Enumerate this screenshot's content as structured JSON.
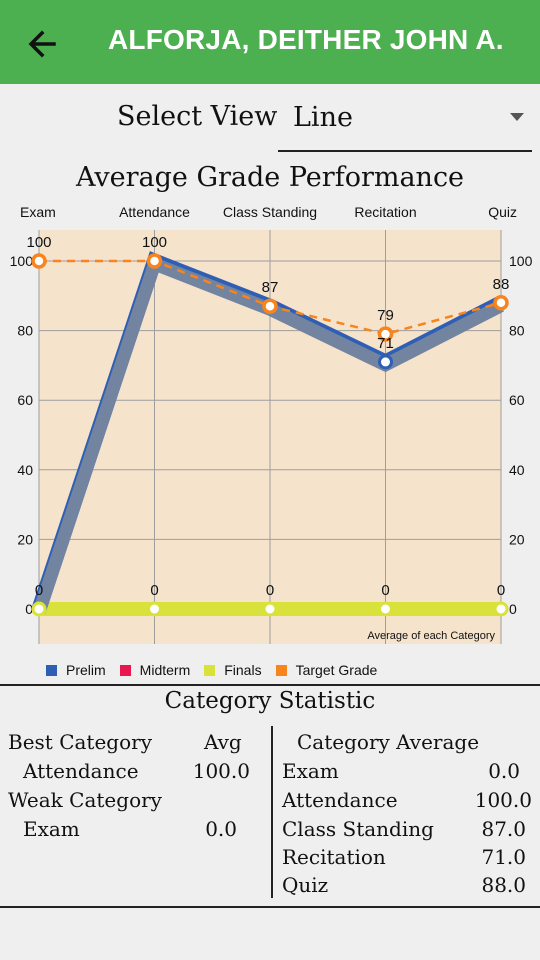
{
  "header": {
    "title": "ALFORJA, DEITHER JOHN A.",
    "back_icon": "arrow-back-icon"
  },
  "select_view": {
    "label": "Select View",
    "value": "Line"
  },
  "colors": {
    "appbar": "#4caf50",
    "prelim": "#2e5fb5",
    "midterm": "#e8174f",
    "finals": "#d9e23a",
    "target": "#f7841c",
    "plot_bg": "#f5e3cc"
  },
  "chart_data": {
    "type": "line",
    "title": "Average Grade Performance",
    "categories": [
      "Exam",
      "Attendance",
      "Class Standing",
      "Recitation",
      "Quiz"
    ],
    "ylim": [
      0,
      100
    ],
    "yticks": [
      0,
      20,
      40,
      60,
      80,
      100
    ],
    "annotation": "Average of each Category",
    "grid": true,
    "legend_position": "bottom-left",
    "series": [
      {
        "name": "Prelim",
        "values": [
          0,
          100,
          87,
          71,
          88
        ],
        "color": "#2e5fb5"
      },
      {
        "name": "Midterm",
        "values": [
          0,
          100,
          87,
          71,
          88
        ],
        "color": "#e8174f"
      },
      {
        "name": "Finals",
        "values": [
          0,
          0,
          0,
          0,
          0
        ],
        "color": "#d9e23a"
      },
      {
        "name": "Target Grade",
        "values": [
          100,
          100,
          87,
          79,
          88
        ],
        "color": "#f7841c"
      }
    ],
    "value_labels": {
      "top": [
        "100",
        "100",
        "87",
        "79",
        "88"
      ],
      "recitation_prelim": "71",
      "bottom": [
        "0",
        "0",
        "0",
        "0",
        "0"
      ]
    }
  },
  "stats": {
    "title": "Category Statistic",
    "best_label": "Best Category",
    "avg_label": "Avg",
    "best_name": "Attendance",
    "best_value": "100.0",
    "weak_label": "Weak Category",
    "weak_name": "Exam",
    "weak_value": "0.0",
    "avg_title": "Category Average",
    "averages": [
      {
        "name": "Exam",
        "value": "0.0"
      },
      {
        "name": "Attendance",
        "value": "100.0"
      },
      {
        "name": "Class Standing",
        "value": "87.0"
      },
      {
        "name": "Recitation",
        "value": "71.0"
      },
      {
        "name": "Quiz",
        "value": "88.0"
      }
    ]
  }
}
